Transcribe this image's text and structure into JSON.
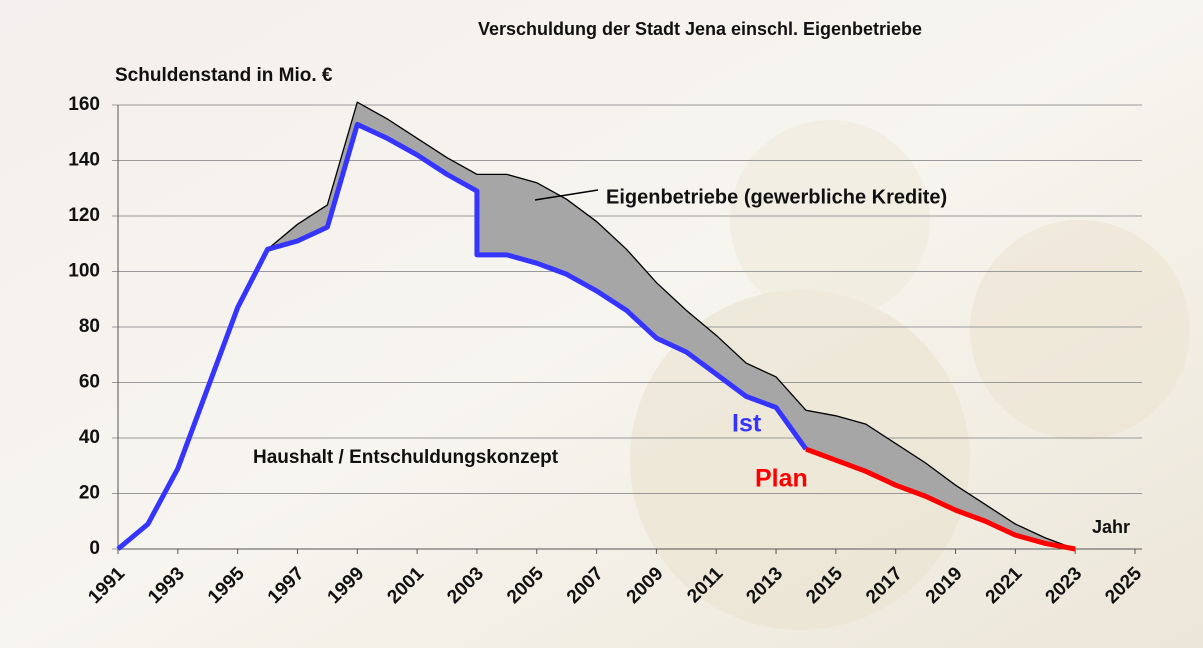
{
  "chart_data": {
    "type": "line",
    "title": "Verschuldung der Stadt Jena einschl. Eigenbetriebe",
    "y_label": "Schuldenstand in Mio. €",
    "x_label": "Jahr",
    "annotations": [
      "Haushalt / Entschuldungskonzept"
    ],
    "x": [
      1991,
      1992,
      1993,
      1994,
      1995,
      1996,
      1997,
      1998,
      1999,
      2000,
      2001,
      2002,
      2003,
      2003,
      2004,
      2005,
      2006,
      2007,
      2008,
      2009,
      2010,
      2011,
      2012,
      2013,
      2014,
      2015,
      2016,
      2017,
      2018,
      2019,
      2020,
      2021,
      2022,
      2023
    ],
    "series": [
      {
        "name": "Ist",
        "color": "#3535ff",
        "values": [
          0,
          9,
          29,
          58,
          87,
          108,
          111,
          116,
          153,
          148,
          142,
          135,
          129,
          106,
          106,
          103,
          99,
          93,
          86,
          76,
          71,
          63,
          55,
          51,
          36,
          null,
          null,
          null,
          null,
          null,
          null,
          null,
          null,
          null
        ]
      },
      {
        "name": "Plan",
        "color": "#ff0000",
        "values": [
          null,
          null,
          null,
          null,
          null,
          null,
          null,
          null,
          null,
          null,
          null,
          null,
          null,
          null,
          null,
          null,
          null,
          null,
          null,
          null,
          null,
          null,
          null,
          null,
          36,
          32,
          28,
          23,
          19,
          14,
          10,
          5,
          2,
          0
        ]
      },
      {
        "name": "Eigenbetriebe (gewerbliche Kredite)",
        "color": "#a6a6a6",
        "stacked": true,
        "values": [
          null,
          null,
          null,
          null,
          null,
          0,
          6,
          8,
          8,
          7,
          6,
          6,
          6,
          29,
          29,
          29,
          27,
          25,
          22,
          20,
          15,
          14,
          12,
          11,
          14,
          16,
          17,
          15,
          12,
          9,
          6,
          4,
          2,
          0
        ]
      }
    ],
    "xlim": [
      1991,
      2025
    ],
    "xticks": [
      1991,
      1993,
      1995,
      1997,
      1999,
      2001,
      2003,
      2005,
      2007,
      2009,
      2011,
      2013,
      2015,
      2017,
      2019,
      2021,
      2023,
      2025
    ],
    "ylim": [
      0,
      160
    ],
    "yticks": [
      0,
      20,
      40,
      60,
      80,
      100,
      120,
      140,
      160
    ],
    "grid": true
  }
}
